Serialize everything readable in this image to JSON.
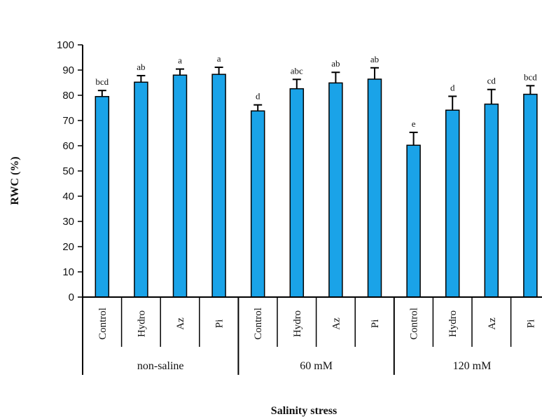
{
  "chart_data": {
    "type": "bar",
    "xlabel": "Salinity stress",
    "ylabel": "RWC (%)",
    "ylim": [
      0,
      100
    ],
    "yticks": [
      0,
      10,
      20,
      30,
      40,
      50,
      60,
      70,
      80,
      90,
      100
    ],
    "bar_color": "#1aa3e8",
    "groups": [
      "non-saline",
      "60 mM",
      "120 mM"
    ],
    "categories": [
      "Control",
      "Hydro",
      "Az",
      "Pi",
      "Control",
      "Hydro",
      "Az",
      "Pi",
      "Control",
      "Hydro",
      "Az",
      "Pi"
    ],
    "values": [
      79.5,
      85.2,
      88.0,
      88.3,
      73.8,
      82.6,
      84.9,
      86.4,
      60.2,
      74.1,
      76.5,
      80.4
    ],
    "errors": [
      2.4,
      2.6,
      2.4,
      2.8,
      2.4,
      3.7,
      4.2,
      4.5,
      5.1,
      5.5,
      5.8,
      3.4
    ],
    "letters": [
      "bcd",
      "ab",
      "a",
      "a",
      "d",
      "abc",
      "ab",
      "ab",
      "e",
      "d",
      "cd",
      "bcd"
    ]
  }
}
